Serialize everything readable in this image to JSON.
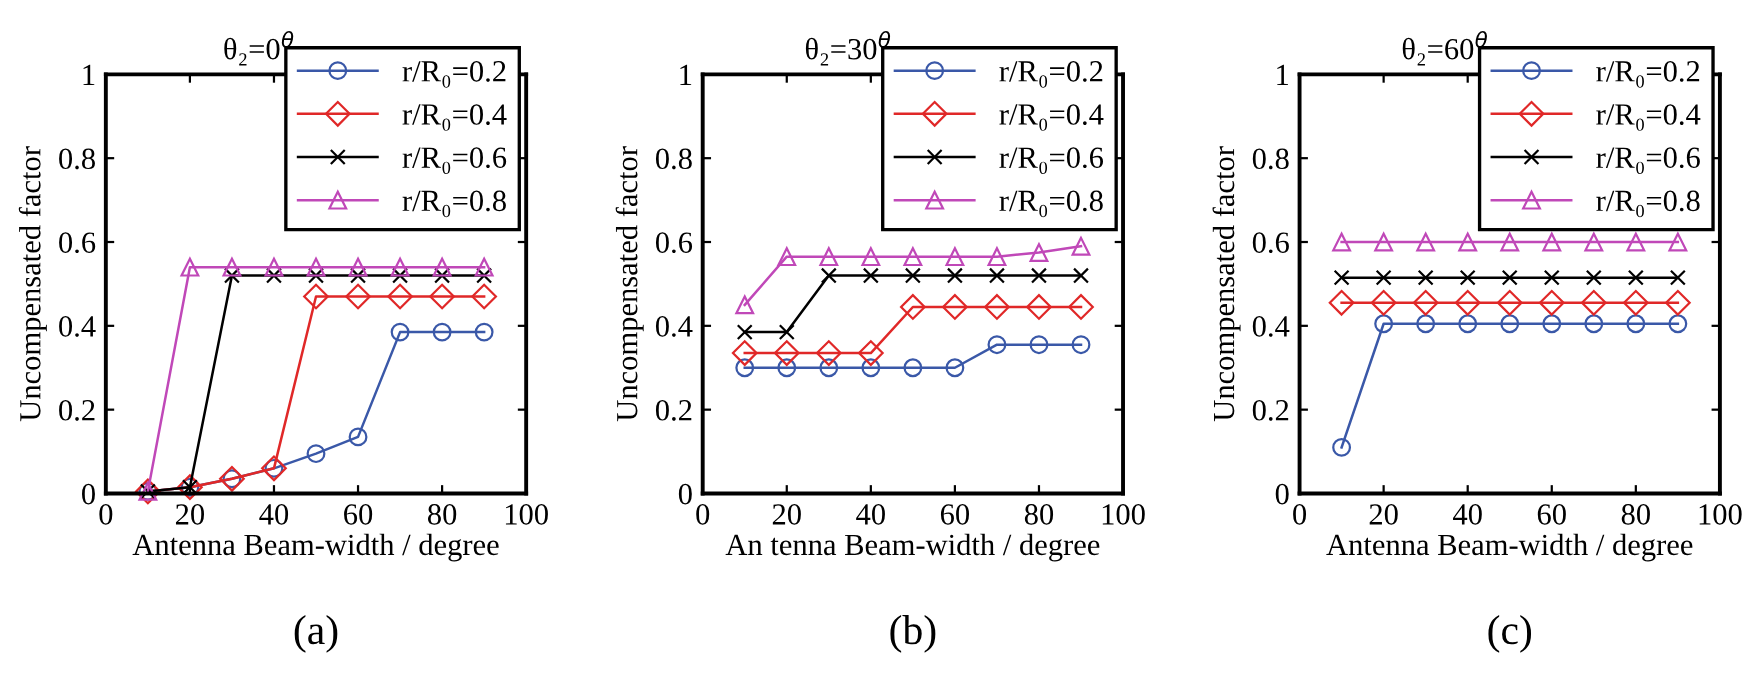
{
  "chart_data": [
    {
      "type": "line",
      "title": "θ₂=0$^{θ}$",
      "xlabel": "Antenna Beam-width / degree",
      "ylabel": "Uncompensated factor",
      "annotations": [
        "(a)"
      ],
      "x": [
        10,
        20,
        30,
        40,
        50,
        60,
        70,
        80,
        90
      ],
      "xlim": [
        0,
        100
      ],
      "xticks": [
        0,
        20,
        40,
        60,
        80,
        100
      ],
      "ylim": [
        0,
        1
      ],
      "yticks": [
        0,
        0.2,
        0.4,
        0.6,
        0.8,
        1
      ],
      "legend": "top right",
      "grid": false,
      "line_style": "solid",
      "series": [
        {
          "name": "r/R₀=0.2",
          "color": "#3a58a8",
          "marker": "circle",
          "values": [
            0.005,
            0.015,
            0.035,
            0.06,
            0.095,
            0.135,
            0.385,
            0.385,
            0.385
          ]
        },
        {
          "name": "r/R₀=0.4",
          "color": "#e02828",
          "marker": "diamond",
          "values": [
            0.005,
            0.015,
            0.035,
            0.06,
            0.47,
            0.47,
            0.47,
            0.47,
            0.47
          ]
        },
        {
          "name": "r/R₀=0.6",
          "color": "#000000",
          "marker": "cross",
          "values": [
            0.005,
            0.015,
            0.52,
            0.52,
            0.52,
            0.52,
            0.52,
            0.52,
            0.52
          ]
        },
        {
          "name": "r/R₀=0.8",
          "color": "#c048b8",
          "marker": "triangle",
          "values": [
            0.005,
            0.54,
            0.54,
            0.54,
            0.54,
            0.54,
            0.54,
            0.54,
            0.54
          ]
        }
      ]
    },
    {
      "type": "line",
      "title": "θ₂=30$^{θ}$",
      "xlabel": "An tenna Beam-width / degree",
      "ylabel": "Uncompensated factor",
      "annotations": [
        "(b)"
      ],
      "x": [
        10,
        20,
        30,
        40,
        50,
        60,
        70,
        80,
        90
      ],
      "xlim": [
        0,
        100
      ],
      "xticks": [
        0,
        20,
        40,
        60,
        80,
        100
      ],
      "ylim": [
        0,
        1
      ],
      "yticks": [
        0,
        0.2,
        0.4,
        0.6,
        0.8,
        1
      ],
      "legend": "top right",
      "grid": false,
      "line_style": "solid",
      "series": [
        {
          "name": "r/R₀=0.2",
          "color": "#3a58a8",
          "marker": "circle",
          "values": [
            0.3,
            0.3,
            0.3,
            0.3,
            0.3,
            0.3,
            0.355,
            0.355,
            0.355
          ]
        },
        {
          "name": "r/R₀=0.4",
          "color": "#e02828",
          "marker": "diamond",
          "values": [
            0.335,
            0.335,
            0.335,
            0.335,
            0.445,
            0.445,
            0.445,
            0.445,
            0.445
          ]
        },
        {
          "name": "r/R₀=0.6",
          "color": "#000000",
          "marker": "cross",
          "values": [
            0.385,
            0.385,
            0.52,
            0.52,
            0.52,
            0.52,
            0.52,
            0.52,
            0.52
          ]
        },
        {
          "name": "r/R₀=0.8",
          "color": "#c048b8",
          "marker": "triangle",
          "values": [
            0.45,
            0.565,
            0.565,
            0.565,
            0.565,
            0.565,
            0.565,
            0.575,
            0.59
          ]
        }
      ]
    },
    {
      "type": "line",
      "title": "θ₂=60$^{θ}$",
      "xlabel": "Antenna Beam-width / degree",
      "ylabel": "Uncompensated factor",
      "annotations": [
        "(c)"
      ],
      "x": [
        10,
        20,
        30,
        40,
        50,
        60,
        70,
        80,
        90
      ],
      "xlim": [
        0,
        100
      ],
      "xticks": [
        0,
        20,
        40,
        60,
        80,
        100
      ],
      "ylim": [
        0,
        1
      ],
      "yticks": [
        0,
        0.2,
        0.4,
        0.6,
        0.8,
        1
      ],
      "legend": "top right",
      "grid": false,
      "line_style": "solid",
      "series": [
        {
          "name": "r/R₀=0.2",
          "color": "#3a58a8",
          "marker": "circle",
          "values": [
            0.11,
            0.405,
            0.405,
            0.405,
            0.405,
            0.405,
            0.405,
            0.405,
            0.405
          ]
        },
        {
          "name": "r/R₀=0.4",
          "color": "#e02828",
          "marker": "diamond",
          "values": [
            0.455,
            0.455,
            0.455,
            0.455,
            0.455,
            0.455,
            0.455,
            0.455,
            0.455
          ]
        },
        {
          "name": "r/R₀=0.6",
          "color": "#000000",
          "marker": "cross",
          "values": [
            0.515,
            0.515,
            0.515,
            0.515,
            0.515,
            0.515,
            0.515,
            0.515,
            0.515
          ]
        },
        {
          "name": "r/R₀=0.8",
          "color": "#c048b8",
          "marker": "triangle",
          "values": [
            0.6,
            0.6,
            0.6,
            0.6,
            0.6,
            0.6,
            0.6,
            0.6,
            0.6
          ]
        }
      ]
    }
  ]
}
